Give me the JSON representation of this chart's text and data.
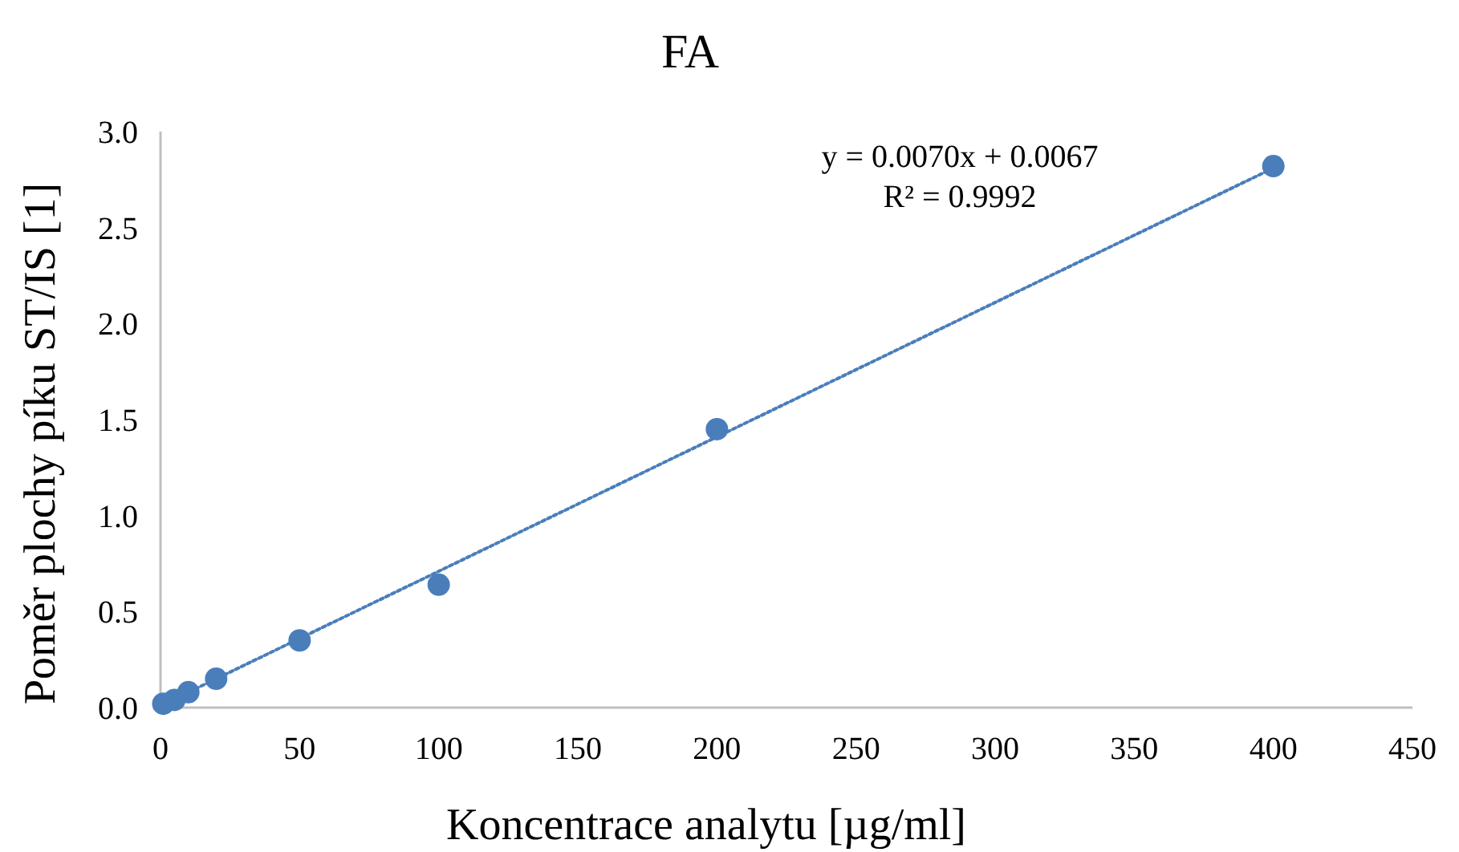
{
  "chart_data": {
    "type": "scatter",
    "title": "FA",
    "xlabel": "Koncentrace analytu [µg/ml]",
    "ylabel": "Poměr plochy píku ST/IS [1]",
    "xlim": [
      0,
      450
    ],
    "ylim": [
      0,
      3.0
    ],
    "xticks": [
      0,
      50,
      100,
      150,
      200,
      250,
      300,
      350,
      400,
      450
    ],
    "yticks": [
      {
        "value": 0,
        "label": "0.0"
      },
      {
        "value": 0.5,
        "label": "0.5"
      },
      {
        "value": 1,
        "label": "1.0"
      },
      {
        "value": 1.5,
        "label": "1.5"
      },
      {
        "value": 2,
        "label": "2.0"
      },
      {
        "value": 2.5,
        "label": "2.5"
      },
      {
        "value": 3,
        "label": "3.0"
      }
    ],
    "grid": false,
    "annotations": [
      "y = 0.0070x + 0.0067",
      "R² = 0.9992"
    ],
    "series": [
      {
        "color": "#4a7ebb",
        "marker": "circle",
        "x": [
          1,
          5,
          10,
          20,
          50,
          100,
          200,
          400
        ],
        "values": [
          0.02,
          0.04,
          0.08,
          0.15,
          0.35,
          0.64,
          1.45,
          2.82
        ]
      },
      {
        "type": "line",
        "color": "#4a7ebb",
        "line_style": "dotted",
        "x": [
          0,
          400
        ],
        "values": [
          0.01,
          2.81
        ]
      }
    ]
  }
}
